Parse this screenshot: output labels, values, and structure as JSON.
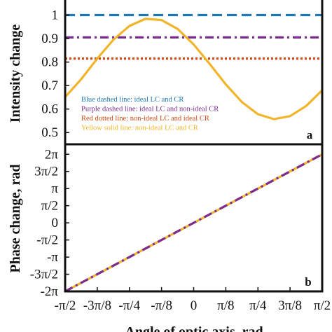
{
  "colors": {
    "blue": "#1f77b4",
    "purple": "#7b2d8e",
    "red": "#cc4a14",
    "yellow": "#f0b52b",
    "axis": "#111111"
  },
  "chart_data": [
    {
      "type": "line",
      "panel_label": "a",
      "ylabel": "Intensity change",
      "xlim": [
        -1.5708,
        1.5708
      ],
      "ylim": [
        0.45,
        1.1
      ],
      "yticks": [
        0.5,
        0.6,
        0.7,
        0.8,
        0.9,
        1.0,
        1.1
      ],
      "ytick_labels": [
        "0.5",
        "0.6",
        "0.7",
        "0.8",
        "0.9",
        "1",
        "1.1"
      ],
      "series": [
        {
          "name": "Blue dashed line: ideal LC and CR",
          "color": "#1f77b4",
          "style": "dashed",
          "x": [
            -1.5708,
            1.5708
          ],
          "y": [
            1.0,
            1.0
          ]
        },
        {
          "name": "Purple dashed line: ideal LC and non-ideal CR",
          "color": "#7b2d8e",
          "style": "dashdot",
          "x": [
            -1.5708,
            1.5708
          ],
          "y": [
            0.905,
            0.905
          ]
        },
        {
          "name": "Red dotted line: non-ideal LC and ideal CR",
          "color": "#cc4a14",
          "style": "dotted",
          "x": [
            -1.5708,
            1.5708
          ],
          "y": [
            0.815,
            0.815
          ]
        },
        {
          "name": "Yellow solid line: non-ideal LC and CR",
          "color": "#f0b52b",
          "style": "solid",
          "x": [
            -1.5708,
            -1.3744,
            -1.1781,
            -0.9817,
            -0.7854,
            -0.589,
            -0.3927,
            -0.1963,
            0.0,
            0.1963,
            0.3927,
            0.589,
            0.7854,
            0.9817,
            1.1781,
            1.3744,
            1.5708
          ],
          "y": [
            0.651,
            0.727,
            0.815,
            0.895,
            0.954,
            0.984,
            0.979,
            0.941,
            0.875,
            0.792,
            0.705,
            0.63,
            0.578,
            0.557,
            0.57,
            0.613,
            0.68
          ]
        }
      ]
    },
    {
      "type": "line",
      "panel_label": "b",
      "ylabel": "Phase change, rad",
      "xlabel": "Angle of optic axis, rad",
      "xlim": [
        -1.5708,
        1.5708
      ],
      "ylim": [
        -6.2832,
        7.2
      ],
      "yticks": [
        -6.2832,
        -4.7124,
        -3.1416,
        -1.5708,
        0.0,
        1.5708,
        3.1416,
        4.7124,
        6.2832
      ],
      "ytick_labels": [
        "-2π",
        "-3π/2",
        "-π",
        "-π/2",
        "0",
        "π/2",
        "π",
        "3π/2",
        "2π"
      ],
      "xticks": [
        -1.5708,
        -1.1781,
        -0.7854,
        -0.3927,
        0.0,
        0.3927,
        0.7854,
        1.1781,
        1.5708
      ],
      "xtick_labels": [
        "-π/2",
        "-3π/8",
        "-π/4",
        "-π/8",
        "0",
        "π/8",
        "π/4",
        "3π/8",
        "π/2"
      ],
      "series": [
        {
          "color": "#f0b52b",
          "style": "solid",
          "x": [
            -1.5708,
            1.5708
          ],
          "y": [
            -6.2832,
            6.2832
          ]
        },
        {
          "color": "#7b2d8e",
          "style": "dashdot",
          "x": [
            -1.5708,
            1.5708
          ],
          "y": [
            -6.2832,
            6.2832
          ]
        }
      ]
    }
  ]
}
